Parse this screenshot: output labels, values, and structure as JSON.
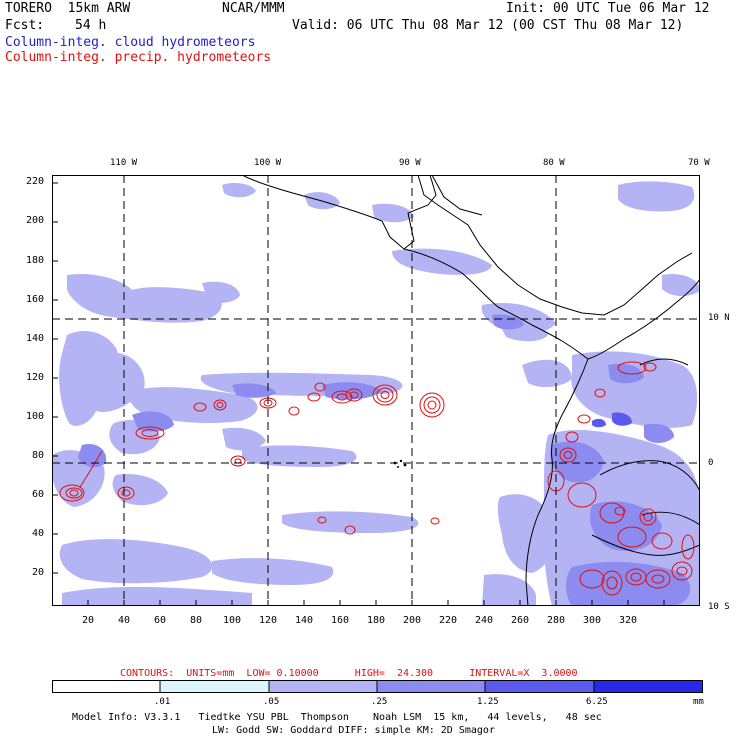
{
  "header": {
    "model": "TORERO  15km ARW",
    "org": "NCAR/MMM",
    "init": "Init: 00 UTC Tue 06 Mar 12",
    "fcst_label": "Fcst:",
    "fcst_value": "54 h",
    "valid": "Valid: 06 UTC Thu 08 Mar 12 (00 CST Thu 08 Mar 12)",
    "field_cloud": "Column-integ. cloud hydrometeors",
    "field_precip": "Column-integ. precip. hydrometeors",
    "cloud_color": "#1f1fc8",
    "precip_color": "#e01010"
  },
  "map": {
    "lon_labels": [
      "110 W",
      "100 W",
      "90 W",
      "80 W",
      "70 W"
    ],
    "lat_labels": [
      "10 N",
      "0",
      "10 S"
    ],
    "y_ticks": [
      "220",
      "200",
      "180",
      "160",
      "140",
      "120",
      "100",
      "80",
      "60",
      "40",
      "20"
    ],
    "x_ticks": [
      "20",
      "40",
      "60",
      "80",
      "100",
      "120",
      "140",
      "160",
      "180",
      "200",
      "220",
      "240",
      "260",
      "280",
      "300",
      "320"
    ]
  },
  "contours_line": {
    "text": "CONTOURS:  UNITS=mm  LOW= 0.10000      HIGH=  24.300      INTERVAL=X  3.0000"
  },
  "colorbar": {
    "levels": [
      ".01",
      ".05",
      ".25",
      "1.25",
      "6.25"
    ],
    "units": "mm",
    "colors": [
      "#ffffff",
      "#dcf4fc",
      "#b4b4f4",
      "#8c8cf0",
      "#5a5aec",
      "#2828e6"
    ]
  },
  "footer": {
    "line1": "Model Info: V3.3.1   Tiedtke YSU PBL  Thompson    Noah LSM  15 km,   44 levels,   48 sec",
    "line2": "LW: Godd SW: Goddard DIFF: simple KM: 2D Smagor"
  }
}
